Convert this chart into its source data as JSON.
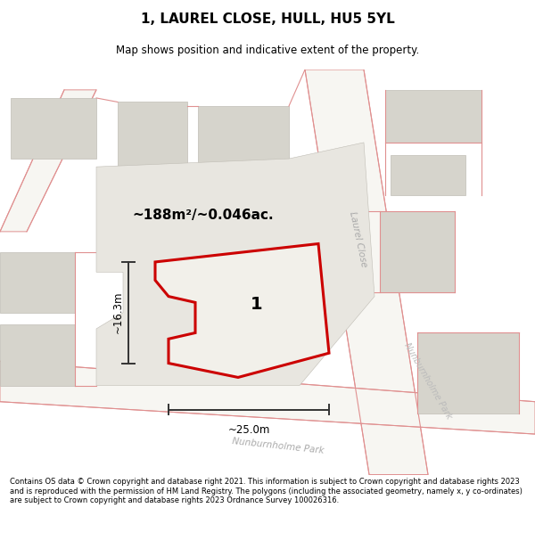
{
  "title": "1, LAUREL CLOSE, HULL, HU5 5YL",
  "subtitle": "Map shows position and indicative extent of the property.",
  "footer": "Contains OS data © Crown copyright and database right 2021. This information is subject to Crown copyright and database rights 2023 and is reproduced with the permission of HM Land Registry. The polygons (including the associated geometry, namely x, y co-ordinates) are subject to Crown copyright and database rights 2023 Ordnance Survey 100026316.",
  "map_bg": "#eeece6",
  "road_fill": "#f7f6f2",
  "building_color": "#d6d4cc",
  "building_outline": "#c0bdb5",
  "pink_line_color": "#e09090",
  "red_outline_color": "#cc0000",
  "area_text": "~188m²/~0.046ac.",
  "property_label": "1",
  "width_label": "~25.0m",
  "height_label": "~16.3m",
  "dim_line_color": "#333333",
  "street_color": "#aaaaaa",
  "street_label_laurel": "Laurel Close",
  "street_label_nunb": "Nunburnholme Park"
}
